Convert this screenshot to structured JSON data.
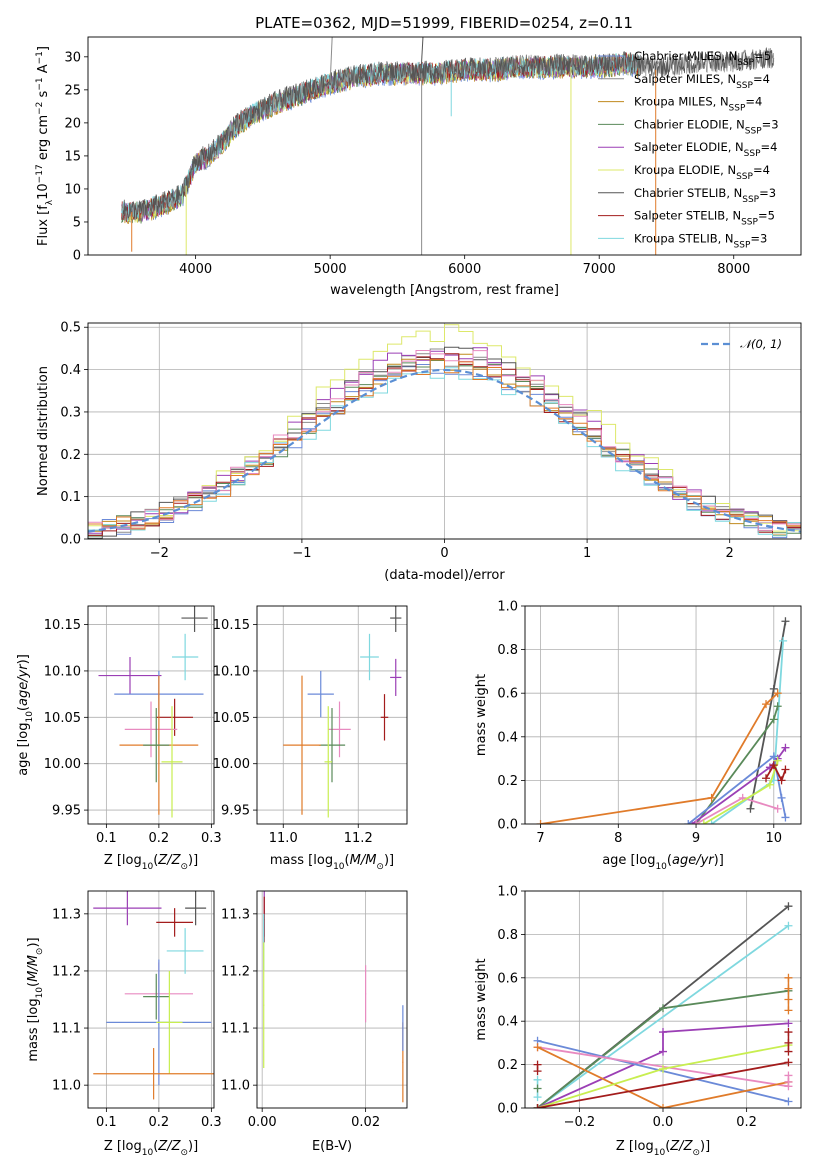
{
  "title": "PLATE=0362, MJD=51999, FIBERID=0254, z=0.11",
  "colors": {
    "Chabrier MILES": "#6b8ad8",
    "Salpeter MILES": "#8c8c8c",
    "Kroupa MILES": "#c08a1e",
    "Chabrier ELODIE": "#5a8a5a",
    "Salpeter ELODIE": "#9b3fb5",
    "Kroupa ELODIE": "#dde86a",
    "Chabrier STELIB": "#555555",
    "Salpeter STELIB": "#a31c1c",
    "Kroupa STELIB": "#7fd8df",
    "orange": "#e07b2a",
    "pink": "#e88ac0",
    "lime": "#c8ee50",
    "normal": "#5b8fd4"
  },
  "chart_data": [
    {
      "id": "spectrum",
      "type": "line",
      "xlabel": "wavelength [Angstrom, rest frame]",
      "ylabel": "Flux [f_λ 10^-17 erg cm^-2 s^-1 A^-1]",
      "xlim": [
        3200,
        8500
      ],
      "ylim": [
        0,
        33
      ],
      "xticks": [
        "4000",
        "5000",
        "6000",
        "7000",
        "8000"
      ],
      "yticks": [
        "0",
        "5",
        "10",
        "15",
        "20",
        "25",
        "30"
      ],
      "grid": false,
      "legend_position": "upper right",
      "legend": [
        {
          "prefix": "Chabrier MILES, N",
          "sub": "SSP",
          "suffix": "=5",
          "color": "#6b8ad8"
        },
        {
          "prefix": "Salpeter MILES, N",
          "sub": "SSP",
          "suffix": "=4",
          "color": "#8c8c8c"
        },
        {
          "prefix": "Kroupa MILES, N",
          "sub": "SSP",
          "suffix": "=4",
          "color": "#c08a1e"
        },
        {
          "prefix": "Chabrier ELODIE, N",
          "sub": "SSP",
          "suffix": "=3",
          "color": "#5a8a5a"
        },
        {
          "prefix": "Salpeter ELODIE, N",
          "sub": "SSP",
          "suffix": "=4",
          "color": "#9b3fb5"
        },
        {
          "prefix": "Kroupa ELODIE, N",
          "sub": "SSP",
          "suffix": "=4",
          "color": "#dde86a"
        },
        {
          "prefix": "Chabrier STELIB, N",
          "sub": "SSP",
          "suffix": "=3",
          "color": "#555555"
        },
        {
          "prefix": "Salpeter STELIB, N",
          "sub": "SSP",
          "suffix": "=5",
          "color": "#a31c1c"
        },
        {
          "prefix": "Kroupa STELIB, N",
          "sub": "SSP",
          "suffix": "=3",
          "color": "#7fd8df"
        }
      ],
      "envelope": {
        "x": [
          3450,
          3600,
          3800,
          3900,
          4000,
          4100,
          4200,
          4300,
          4400,
          4600,
          4800,
          5000,
          5200,
          5400,
          5600,
          5800,
          6000,
          6200,
          6400,
          6600,
          6800,
          7000,
          7200,
          7400,
          7600,
          7800,
          8000,
          8200,
          8300
        ],
        "y": [
          6.5,
          6.5,
          8,
          9,
          14,
          15,
          17,
          19.5,
          21,
          23,
          24.5,
          26,
          27,
          27.5,
          27.5,
          27.5,
          28,
          28,
          28.5,
          28.5,
          28.5,
          28.5,
          29,
          28,
          28.5,
          29,
          29,
          29.5,
          29.5
        ]
      },
      "dips": [
        {
          "x": 3525,
          "y": 0.5,
          "color": "#e07b2a"
        },
        {
          "x": 3930,
          "y": 0,
          "color": "#dde86a"
        },
        {
          "x": 5680,
          "y": 0,
          "color": "#8c8c8c"
        },
        {
          "x": 5900,
          "y": 21,
          "color": "#7fd8df"
        },
        {
          "x": 6790,
          "y": 0,
          "color": "#dde86a"
        },
        {
          "x": 7420,
          "y": 0,
          "color": "#e07b2a"
        }
      ],
      "spikes": [
        {
          "x": 5000,
          "y": 33,
          "color": "#8c8c8c"
        },
        {
          "x": 5675,
          "y": 33,
          "color": "#555555"
        }
      ]
    },
    {
      "id": "residuals",
      "type": "line",
      "xlabel": "(data-model)/error",
      "ylabel": "Normed distribution",
      "xlim": [
        -2.5,
        2.5
      ],
      "ylim": [
        0,
        0.51
      ],
      "xticks": [
        "−2",
        "−1",
        "0",
        "1",
        "2"
      ],
      "yticks": [
        "0.0",
        "0.1",
        "0.2",
        "0.3",
        "0.4",
        "0.5"
      ],
      "grid": true,
      "legend_position": "upper right",
      "legend_label": "𝒩(0, 1)",
      "bin_width": 0.1,
      "series": [
        {
          "name": "Chabrier MILES",
          "color": "#6b8ad8",
          "peak": 0.41
        },
        {
          "name": "Salpeter MILES",
          "color": "#8c8c8c",
          "peak": 0.43
        },
        {
          "name": "Kroupa MILES",
          "color": "#c08a1e",
          "peak": 0.42
        },
        {
          "name": "Chabrier ELODIE",
          "color": "#5a8a5a",
          "peak": 0.42
        },
        {
          "name": "Salpeter ELODIE",
          "color": "#9b3fb5",
          "peak": 0.45
        },
        {
          "name": "Kroupa ELODIE",
          "color": "#dde86a",
          "peak": 0.49
        },
        {
          "name": "Chabrier STELIB",
          "color": "#555555",
          "peak": 0.44
        },
        {
          "name": "Salpeter STELIB",
          "color": "#a31c1c",
          "peak": 0.42
        },
        {
          "name": "Kroupa STELIB",
          "color": "#7fd8df",
          "peak": 0.4
        },
        {
          "name": "",
          "color": "#e88ac0",
          "peak": 0.44
        },
        {
          "name": "",
          "color": "#e07b2a",
          "peak": 0.41
        }
      ]
    },
    {
      "id": "age-vs-Z",
      "type": "scatter",
      "xlabel": "Z [log10(Z/Z⊙)]",
      "ylabel": "age [log10(age/yr)]",
      "xlim": [
        0.065,
        0.305
      ],
      "ylim": [
        9.935,
        10.17
      ],
      "xticks": [
        "0.1",
        "0.2",
        "0.3"
      ],
      "yticks": [
        "9.95",
        "10.00",
        "10.05",
        "10.10",
        "10.15"
      ],
      "grid": true,
      "points": [
        {
          "x": 0.145,
          "y": 10.095,
          "xerr": 0.06,
          "yerr": 0.02,
          "color": "#9b3fb5"
        },
        {
          "x": 0.2,
          "y": 10.075,
          "xerr": 0.085,
          "yerr": 0.025,
          "color": "#6b8ad8"
        },
        {
          "x": 0.25,
          "y": 10.115,
          "xerr": 0.025,
          "yerr": 0.025,
          "color": "#7fd8df"
        },
        {
          "x": 0.268,
          "y": 10.157,
          "xerr": 0.025,
          "yerr": 0.015,
          "color": "#555555"
        },
        {
          "x": 0.23,
          "y": 10.05,
          "xerr": 0.035,
          "yerr": 0.02,
          "color": "#a31c1c"
        },
        {
          "x": 0.185,
          "y": 10.037,
          "xerr": 0.05,
          "yerr": 0.03,
          "color": "#e88ac0"
        },
        {
          "x": 0.2,
          "y": 10.02,
          "xerr": 0.075,
          "yerr": 0.075,
          "color": "#e07b2a"
        },
        {
          "x": 0.195,
          "y": 10.02,
          "xerr": 0.025,
          "yerr": 0.04,
          "color": "#5a8a5a"
        },
        {
          "x": 0.225,
          "y": 10.002,
          "xerr": 0.02,
          "yerr": 0.06,
          "color": "#c8ee50"
        }
      ]
    },
    {
      "id": "age-vs-mass",
      "type": "scatter",
      "xlabel": "mass [log10(M/M⊙)]",
      "ylabel": "",
      "xlim": [
        10.93,
        11.33
      ],
      "ylim": [
        9.935,
        10.17
      ],
      "xticks": [
        "11.0",
        "11.2"
      ],
      "yticks": [
        "9.95",
        "10.00",
        "10.05",
        "10.10",
        "10.15"
      ],
      "grid": true,
      "points": [
        {
          "x": 11.3,
          "y": 10.093,
          "xerr": 0.015,
          "yerr": 0.02,
          "color": "#9b3fb5"
        },
        {
          "x": 11.3,
          "y": 10.157,
          "xerr": 0.015,
          "yerr": 0.015,
          "color": "#555555"
        },
        {
          "x": 11.23,
          "y": 10.115,
          "xerr": 0.025,
          "yerr": 0.025,
          "color": "#7fd8df"
        },
        {
          "x": 11.27,
          "y": 10.05,
          "xerr": 0.01,
          "yerr": 0.025,
          "color": "#a31c1c"
        },
        {
          "x": 11.1,
          "y": 10.075,
          "xerr": 0.035,
          "yerr": 0.025,
          "color": "#6b8ad8"
        },
        {
          "x": 11.15,
          "y": 10.037,
          "xerr": 0.03,
          "yerr": 0.03,
          "color": "#e88ac0"
        },
        {
          "x": 11.13,
          "y": 10.02,
          "xerr": 0.035,
          "yerr": 0.04,
          "color": "#5a8a5a"
        },
        {
          "x": 11.05,
          "y": 10.02,
          "xerr": 0.05,
          "yerr": 0.075,
          "color": "#e07b2a"
        },
        {
          "x": 11.12,
          "y": 10.002,
          "xerr": 0.01,
          "yerr": 0.06,
          "color": "#c8ee50"
        }
      ]
    },
    {
      "id": "massweight-vs-age",
      "type": "line",
      "xlabel": "age [log10(age/yr)]",
      "ylabel": "mass weight",
      "xlim": [
        6.8,
        10.35
      ],
      "ylim": [
        0,
        1
      ],
      "xticks": [
        "7",
        "8",
        "9",
        "10"
      ],
      "yticks": [
        "0.0",
        "0.2",
        "0.4",
        "0.6",
        "0.8",
        "1.0"
      ],
      "grid": true,
      "series": [
        {
          "color": "#555555",
          "x": [
            9.7,
            10.0,
            10.15
          ],
          "y": [
            0.07,
            0.62,
            0.93
          ]
        },
        {
          "color": "#7fd8df",
          "x": [
            9.2,
            10.0,
            10.12
          ],
          "y": [
            0.0,
            0.2,
            0.84
          ]
        },
        {
          "color": "#5a8a5a",
          "x": [
            9.0,
            10.0,
            10.05
          ],
          "y": [
            0.0,
            0.48,
            0.54
          ]
        },
        {
          "color": "#e07b2a",
          "x": [
            7.0,
            9.2,
            9.9,
            10.05
          ],
          "y": [
            0.0,
            0.12,
            0.55,
            0.6
          ]
        },
        {
          "color": "#9b3fb5",
          "x": [
            8.95,
            9.95,
            10.05,
            10.15
          ],
          "y": [
            0.0,
            0.26,
            0.3,
            0.35
          ]
        },
        {
          "color": "#6b8ad8",
          "x": [
            8.9,
            10.0,
            10.1,
            10.15
          ],
          "y": [
            0.0,
            0.31,
            0.12,
            0.03
          ]
        },
        {
          "color": "#e88ac0",
          "x": [
            9.0,
            9.6,
            10.05
          ],
          "y": [
            0.0,
            0.12,
            0.07
          ]
        },
        {
          "color": "#c8ee50",
          "x": [
            9.1,
            9.95,
            10.05
          ],
          "y": [
            0.0,
            0.18,
            0.29
          ]
        },
        {
          "color": "#a31c1c",
          "x": [
            9.9,
            10.0,
            10.1,
            10.15
          ],
          "y": [
            0.21,
            0.27,
            0.2,
            0.25
          ]
        }
      ]
    },
    {
      "id": "mass-vs-Z",
      "type": "scatter",
      "xlabel": "Z [log10(Z/Z⊙)]",
      "ylabel": "mass [log10(M/M⊙)]",
      "xlim": [
        0.065,
        0.305
      ],
      "ylim": [
        10.96,
        11.34
      ],
      "xticks": [
        "0.1",
        "0.2",
        "0.3"
      ],
      "yticks": [
        "11.0",
        "11.1",
        "11.2",
        "11.3"
      ],
      "grid": true,
      "points": [
        {
          "x": 0.14,
          "y": 11.31,
          "xerr": 0.065,
          "yerr": 0.03,
          "color": "#9b3fb5"
        },
        {
          "x": 0.27,
          "y": 11.31,
          "xerr": 0.02,
          "yerr": 0.03,
          "color": "#555555"
        },
        {
          "x": 0.23,
          "y": 11.285,
          "xerr": 0.035,
          "yerr": 0.025,
          "color": "#a31c1c"
        },
        {
          "x": 0.25,
          "y": 11.235,
          "xerr": 0.035,
          "yerr": 0.04,
          "color": "#7fd8df"
        },
        {
          "x": 0.2,
          "y": 11.16,
          "xerr": 0.065,
          "yerr": 0.055,
          "color": "#e88ac0"
        },
        {
          "x": 0.195,
          "y": 11.155,
          "xerr": 0.025,
          "yerr": 0.04,
          "color": "#5a8a5a"
        },
        {
          "x": 0.2,
          "y": 11.11,
          "xerr": 0.1,
          "yerr": 0.11,
          "color": "#6b8ad8"
        },
        {
          "x": 0.22,
          "y": 11.11,
          "xerr": 0.025,
          "yerr": 0.09,
          "color": "#c8ee50"
        },
        {
          "x": 0.19,
          "y": 11.02,
          "xerr": 0.115,
          "yerr": 0.045,
          "color": "#e07b2a"
        }
      ]
    },
    {
      "id": "mass-vs-ebv",
      "type": "scatter",
      "xlabel": "E(B-V)",
      "ylabel": "",
      "xlim": [
        -0.001,
        0.028
      ],
      "ylim": [
        10.96,
        11.34
      ],
      "xticks": [
        "0.00",
        "0.02"
      ],
      "yticks": [
        "11.0",
        "11.1",
        "11.2",
        "11.3"
      ],
      "grid": true,
      "points": [
        {
          "x": 0.0004,
          "y": 11.3,
          "xerr": 0.0001,
          "yerr": 0.04,
          "color": "#9b3fb5"
        },
        {
          "x": 0.0004,
          "y": 11.29,
          "xerr": 0.0001,
          "yerr": 0.04,
          "color": "#a31c1c"
        },
        {
          "x": 0.0003,
          "y": 11.25,
          "xerr": 0.0001,
          "yerr": 0.05,
          "color": "#7fd8df"
        },
        {
          "x": 0.0003,
          "y": 11.14,
          "xerr": 0.0001,
          "yerr": 0.11,
          "color": "#c8ee50"
        },
        {
          "x": 0.02,
          "y": 11.16,
          "xerr": 0.0001,
          "yerr": 0.05,
          "color": "#e88ac0"
        },
        {
          "x": 0.0272,
          "y": 11.04,
          "xerr": 0.0001,
          "yerr": 0.07,
          "color": "#e07b2a"
        },
        {
          "x": 0.0272,
          "y": 11.1,
          "xerr": 0.0001,
          "yerr": 0.04,
          "color": "#6b8ad8"
        }
      ]
    },
    {
      "id": "massweight-vs-Z",
      "type": "line",
      "xlabel": "Z [log10(Z/Z⊙)]",
      "ylabel": "mass weight",
      "xlim": [
        -0.33,
        0.33
      ],
      "ylim": [
        0,
        1
      ],
      "xticks": [
        "−0.2",
        "0.0",
        "0.2"
      ],
      "yticks": [
        "0.0",
        "0.2",
        "0.4",
        "0.6",
        "0.8",
        "1.0"
      ],
      "grid": true,
      "series": [
        {
          "color": "#555555",
          "x": [
            -0.3,
            0.3
          ],
          "y": [
            0.0,
            0.93
          ]
        },
        {
          "color": "#7fd8df",
          "x": [
            -0.3,
            0.3
          ],
          "y": [
            0.0,
            0.84
          ]
        },
        {
          "color": "#5a8a5a",
          "x": [
            -0.3,
            0.0,
            0.3
          ],
          "y": [
            0.0,
            0.46,
            0.54
          ]
        },
        {
          "color": "#9b3fb5",
          "x": [
            -0.3,
            0.0,
            0.0,
            0.3
          ],
          "y": [
            0.0,
            0.26,
            0.35,
            0.39
          ]
        },
        {
          "color": "#6b8ad8",
          "x": [
            -0.3,
            0.3
          ],
          "y": [
            0.31,
            0.03
          ]
        },
        {
          "color": "#e88ac0",
          "x": [
            -0.3,
            0.3
          ],
          "y": [
            0.28,
            0.1
          ]
        },
        {
          "color": "#e07b2a",
          "x": [
            -0.3,
            0.0,
            0.3
          ],
          "y": [
            0.28,
            0.0,
            0.12
          ]
        },
        {
          "color": "#c8ee50",
          "x": [
            -0.3,
            0.0,
            0.3
          ],
          "y": [
            0.0,
            0.18,
            0.29
          ]
        },
        {
          "color": "#a31c1c",
          "x": [
            -0.3,
            0.3
          ],
          "y": [
            0.0,
            0.21
          ]
        }
      ],
      "marks": [
        {
          "color": "#a31c1c",
          "x": -0.3,
          "ys": [
            0.2,
            0.17
          ]
        },
        {
          "color": "#7fd8df",
          "x": -0.3,
          "ys": [
            0.13,
            0.05
          ]
        },
        {
          "color": "#5a8a5a",
          "x": -0.3,
          "ys": [
            0.09
          ]
        },
        {
          "color": "#e07b2a",
          "x": 0.3,
          "ys": [
            0.6,
            0.55,
            0.5,
            0.45
          ]
        },
        {
          "color": "#a31c1c",
          "x": 0.3,
          "ys": [
            0.35,
            0.3,
            0.26
          ]
        },
        {
          "color": "#e88ac0",
          "x": 0.3,
          "ys": [
            0.15,
            0.12
          ]
        }
      ]
    }
  ]
}
